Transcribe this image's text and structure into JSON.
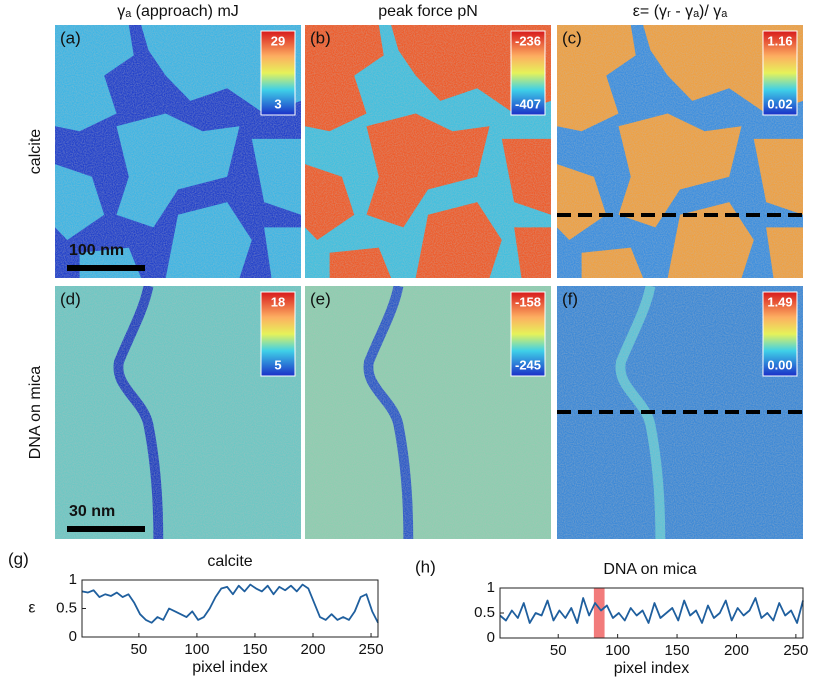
{
  "panels": {
    "column_titles": [
      "γₐ (approach) mJ",
      "peak force   pN",
      "ε= (γᵣ - γₐ)/ γₐ"
    ],
    "row_labels": [
      "calcite",
      "DNA on mica"
    ],
    "images": [
      {
        "label": "(a)",
        "colorbar": [
          "29",
          "3"
        ]
      },
      {
        "label": "(b)",
        "colorbar": [
          "-236",
          "-407"
        ]
      },
      {
        "label": "(c)",
        "colorbar": [
          "1.16",
          "0.02"
        ]
      },
      {
        "label": "(d)",
        "colorbar": [
          "18",
          "5"
        ]
      },
      {
        "label": "(e)",
        "colorbar": [
          "-158",
          "-245"
        ]
      },
      {
        "label": "(f)",
        "colorbar": [
          "1.49",
          "0.00"
        ]
      }
    ],
    "scale_bars": [
      "100 nm",
      "30 nm"
    ]
  },
  "chart_data": [
    {
      "type": "line",
      "panel_label": "(g)",
      "title": "calcite",
      "ylabel": "ε",
      "xlabel": "pixel index",
      "color": "#1f5f9e",
      "x": [
        1,
        6,
        11,
        16,
        21,
        26,
        31,
        36,
        41,
        46,
        51,
        56,
        61,
        66,
        71,
        76,
        81,
        86,
        91,
        96,
        101,
        106,
        111,
        116,
        121,
        126,
        131,
        136,
        141,
        146,
        151,
        156,
        161,
        166,
        171,
        176,
        181,
        186,
        191,
        196,
        201,
        206,
        211,
        216,
        221,
        226,
        231,
        236,
        241,
        246,
        251,
        256
      ],
      "values": [
        0.8,
        0.78,
        0.82,
        0.7,
        0.75,
        0.72,
        0.78,
        0.7,
        0.75,
        0.6,
        0.4,
        0.3,
        0.25,
        0.35,
        0.3,
        0.5,
        0.45,
        0.4,
        0.35,
        0.45,
        0.3,
        0.35,
        0.5,
        0.7,
        0.85,
        0.88,
        0.75,
        0.9,
        0.8,
        0.92,
        0.85,
        0.8,
        0.9,
        0.75,
        0.88,
        0.82,
        0.9,
        0.8,
        0.92,
        0.85,
        0.6,
        0.35,
        0.3,
        0.4,
        0.3,
        0.35,
        0.3,
        0.45,
        0.7,
        0.75,
        0.45,
        0.25
      ],
      "xlim": [
        1,
        256
      ],
      "ylim": [
        0,
        1
      ],
      "xticks": [
        50,
        100,
        150,
        200,
        250
      ],
      "yticks": [
        0,
        0.5,
        1
      ]
    },
    {
      "type": "line",
      "panel_label": "(h)",
      "title": "DNA on mica",
      "xlabel": "pixel index",
      "color": "#1f5f9e",
      "x": [
        1,
        6,
        11,
        16,
        21,
        26,
        31,
        36,
        41,
        46,
        51,
        56,
        61,
        66,
        71,
        76,
        81,
        86,
        91,
        96,
        101,
        106,
        111,
        116,
        121,
        126,
        131,
        136,
        141,
        146,
        151,
        156,
        161,
        166,
        171,
        176,
        181,
        186,
        191,
        196,
        201,
        206,
        211,
        216,
        221,
        226,
        231,
        236,
        241,
        246,
        251,
        256
      ],
      "values": [
        0.45,
        0.35,
        0.55,
        0.4,
        0.7,
        0.3,
        0.5,
        0.45,
        0.75,
        0.35,
        0.55,
        0.4,
        0.6,
        0.3,
        0.8,
        0.45,
        0.7,
        0.55,
        0.65,
        0.4,
        0.5,
        0.35,
        0.6,
        0.45,
        0.55,
        0.3,
        0.7,
        0.4,
        0.5,
        0.6,
        0.35,
        0.75,
        0.45,
        0.55,
        0.3,
        0.65,
        0.4,
        0.5,
        0.75,
        0.35,
        0.6,
        0.45,
        0.55,
        0.8,
        0.4,
        0.5,
        0.35,
        0.7,
        0.45,
        0.55,
        0.3,
        0.75
      ],
      "highlight": {
        "xlim": [
          80,
          89
        ],
        "color": "#f06464"
      },
      "xlim": [
        1,
        256
      ],
      "ylim": [
        0,
        1
      ],
      "xticks": [
        50,
        100,
        150,
        200,
        250
      ],
      "yticks": [
        0,
        0.5,
        1
      ]
    }
  ]
}
